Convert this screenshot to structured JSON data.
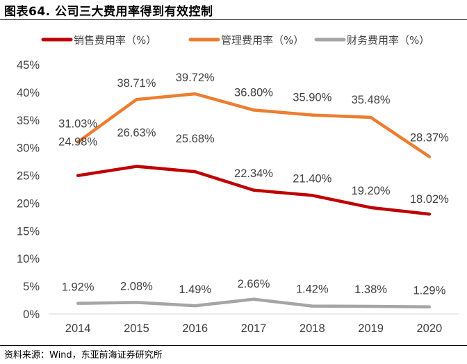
{
  "figure": {
    "title": "图表64. 公司三大费用率得到有效控制",
    "source": "资料来源：Wind，东亚前海证券研究所"
  },
  "chart_data": {
    "type": "line",
    "title": "",
    "xlabel": "",
    "ylabel": "",
    "x": [
      "2014",
      "2015",
      "2016",
      "2017",
      "2018",
      "2019",
      "2020"
    ],
    "ylim": [
      0,
      45
    ],
    "yticks": [
      "0%",
      "5%",
      "10%",
      "15%",
      "20%",
      "25%",
      "30%",
      "35%",
      "40%",
      "45%"
    ],
    "legend_position": "top",
    "series": [
      {
        "name": "销售费用率（%）",
        "color": "#C00000",
        "values": [
          24.98,
          26.63,
          25.68,
          22.34,
          21.4,
          19.2,
          18.02
        ],
        "labels": [
          "24.98%",
          "26.63%",
          "25.68%",
          "22.34%",
          "21.40%",
          "19.20%",
          "18.02%"
        ]
      },
      {
        "name": "管理费用率（%）",
        "color": "#ED7D31",
        "values": [
          31.03,
          38.71,
          39.72,
          36.8,
          35.9,
          35.48,
          28.37
        ],
        "labels": [
          "31.03%",
          "38.71%",
          "39.72%",
          "36.80%",
          "35.90%",
          "35.48%",
          "28.37%"
        ]
      },
      {
        "name": "财务费用率（%）",
        "color": "#A5A5A5",
        "values": [
          1.92,
          2.08,
          1.49,
          2.66,
          1.42,
          1.38,
          1.29
        ],
        "labels": [
          "1.92%",
          "2.08%",
          "1.49%",
          "2.66%",
          "1.42%",
          "1.38%",
          "1.29%"
        ]
      }
    ]
  }
}
